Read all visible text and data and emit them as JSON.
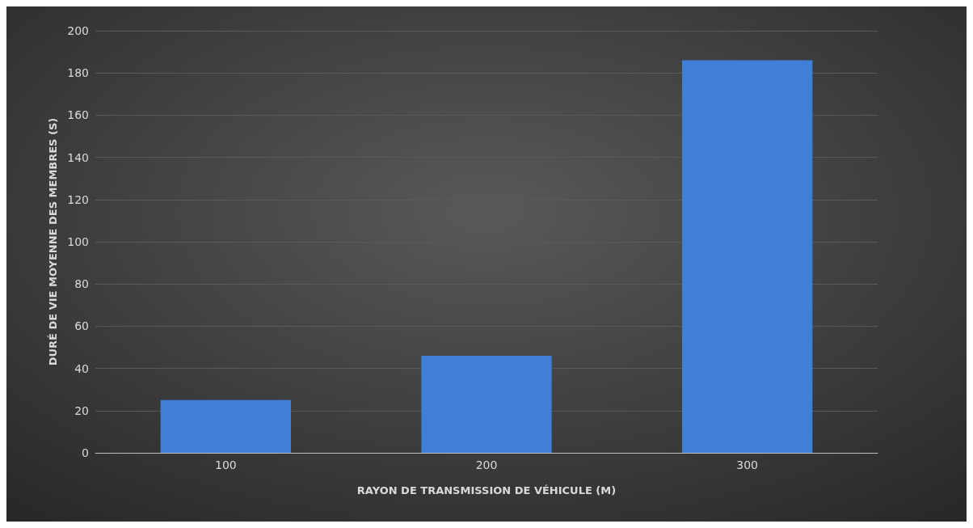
{
  "chart_data": {
    "type": "bar",
    "xlabel": "RAYON DE TRANSMISSION DE VÉHICULE (M)",
    "ylabel": "DURÉ DE VIE MOYENNE DES MEMBRES (S)",
    "categories": [
      "100",
      "200",
      "300"
    ],
    "values": [
      25,
      46,
      186
    ],
    "color": "#3f7fd6",
    "ylim": [
      0,
      200
    ],
    "yticks": [
      0,
      20,
      40,
      60,
      80,
      100,
      120,
      140,
      160,
      180,
      200
    ],
    "grid": "y"
  }
}
